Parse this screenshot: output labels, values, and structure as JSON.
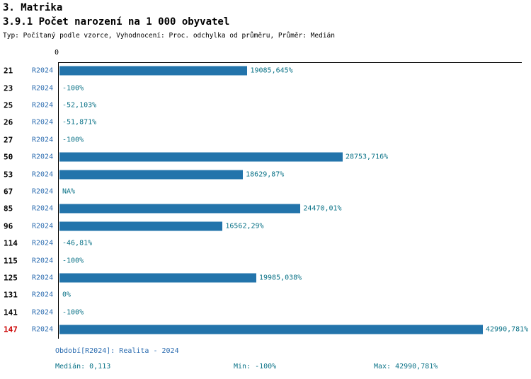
{
  "header": {
    "title": "3. Matrika"
  },
  "colors": {
    "bar": "#2374AB",
    "highlight": "#CC0000",
    "series_label": "#2B6CB0",
    "value_label": "#0A7287",
    "axis": "#000000"
  },
  "chart_data": {
    "type": "bar",
    "orientation": "horizontal",
    "title": "3.9.1 Počet narození na 1 000 obyvatel",
    "subtitle": "Typ: Počítaný podle vzorce, Vyhodnocení: Proc. odchylka od průměru, Průměr: Medián",
    "axis_zero_label": "0",
    "series_label": "R2024",
    "categories": [
      "21",
      "23",
      "25",
      "26",
      "27",
      "50",
      "53",
      "67",
      "85",
      "96",
      "114",
      "115",
      "125",
      "131",
      "141",
      "147"
    ],
    "values": [
      19085.645,
      -100,
      -52.103,
      -51.871,
      -100,
      28753.716,
      18629.87,
      null,
      24470.01,
      16562.29,
      -46.81,
      -100,
      19985.038,
      0,
      -100,
      42990.781
    ],
    "value_labels": [
      "19085,645%",
      "-100%",
      "-52,103%",
      "-51,871%",
      "-100%",
      "28753,716%",
      "18629,87%",
      "NA%",
      "24470,01%",
      "16562,29%",
      "-46,81%",
      "-100%",
      "19985,038%",
      "0%",
      "-100%",
      "42990,781%"
    ],
    "xlim": [
      0,
      42990.781
    ],
    "grid": false,
    "highlight_category": "147",
    "footer": {
      "period": "Období[R2024]: Realita - 2024",
      "median": "Medián: 0,113",
      "min": "Min: -100%",
      "max": "Max: 42990,781%"
    }
  }
}
